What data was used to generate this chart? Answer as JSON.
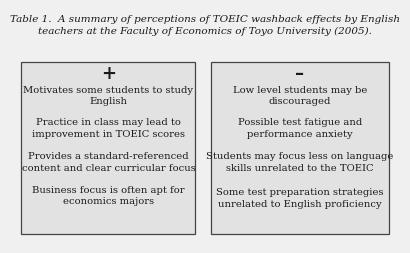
{
  "title_line1": "Table 1.  A summary of perceptions of TOEIC washback effects by English",
  "title_line2": "teachers at the Faculty of Economics of Toyo University (2005).",
  "left_header": "+",
  "right_header": "–",
  "left_items": [
    "Motivates some students to study\nEnglish",
    "Practice in class may lead to\nimprovement in TOEIC scores",
    "Provides a standard-referenced\ncontent and clear curricular focus",
    "Business focus is often apt for\neconomics majors"
  ],
  "right_items": [
    "Low level students may be\ndiscouraged",
    "Possible test fatigue and\nperformance anxiety",
    "Students may focus less on language\nskills unrelated to the TOEIC",
    "Some test preparation strategies\nunrelated to English proficiency"
  ],
  "box_bg": "#e2e2e2",
  "text_color": "#1a1a1a",
  "fig_bg": "#f0f0f0",
  "title_fontsize": 7.5,
  "header_fontsize": 13,
  "item_fontsize": 7.2
}
